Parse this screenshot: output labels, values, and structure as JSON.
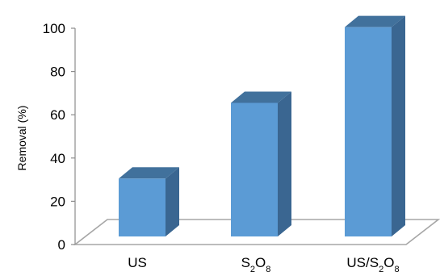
{
  "chart_data": {
    "type": "bar",
    "style": "3d-column",
    "categories": [
      {
        "main": "US",
        "segments": [
          {
            "t": "US",
            "sub": false
          }
        ]
      },
      {
        "main": "S2O8",
        "segments": [
          {
            "t": "S",
            "sub": false
          },
          {
            "t": "2",
            "sub": true
          },
          {
            "t": "O",
            "sub": false
          },
          {
            "t": "8",
            "sub": true
          }
        ]
      },
      {
        "main": "US/S2O8",
        "segments": [
          {
            "t": "US/S",
            "sub": false
          },
          {
            "t": "2",
            "sub": true
          },
          {
            "t": "O",
            "sub": false
          },
          {
            "t": "8",
            "sub": true
          }
        ]
      }
    ],
    "values": [
      29,
      64,
      99
    ],
    "ylabel": "Removal (%)",
    "xlabel": "",
    "title": "",
    "ylim": [
      0,
      100
    ],
    "yticks": [
      0,
      20,
      40,
      60,
      80,
      100
    ],
    "grid": false,
    "legend": "none",
    "colors": {
      "front": "#5b9bd5",
      "top": "#41719c",
      "side": "#3a6691",
      "floor": "#a6a6a6",
      "axis": "#8c8c8c"
    }
  }
}
